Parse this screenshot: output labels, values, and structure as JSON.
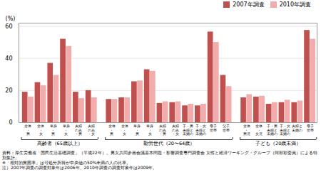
{
  "chart_data": {
    "type": "bar",
    "ylabel": "(%)",
    "ylim": [
      0,
      62
    ],
    "yticks": [
      0,
      20,
      40,
      60
    ],
    "grid": true,
    "legend": "upper right",
    "groups": [
      {
        "label": "高齢者（65歳以上）",
        "categories": [
          "全体\n・\n男",
          "全体\n・\n女",
          "単身\n・\n男",
          "単身\n・\n女",
          "夫婦\nのみ\n・男",
          "夫婦\nのみ\n・女"
        ]
      },
      {
        "label": "勤労世代（20〜64歳）",
        "categories": [
          "全体\n・\n男",
          "全体\n・\n女",
          "単身\n・\n男",
          "単身\n・\n女",
          "夫婦\nのみ\n・男",
          "夫婦\nのみ\n・女",
          "子・男\n夫婦と\n未婚の",
          "子・女\n夫婦と\n未婚の",
          "母子\n世帯",
          "父子\n世帯"
        ]
      },
      {
        "label": "子ども（20歳未満）",
        "categories": [
          "全体\n・\n男児",
          "全体\n・\n女児",
          "子・男\n夫婦と\n未婚の",
          "子・女\n夫婦と\n未婚の",
          "夫婦と\n未婚の",
          "母子\n世帯"
        ]
      }
    ],
    "series": [
      {
        "name": "2007年調査",
        "color": "#C0504D",
        "values": [
          19.0,
          25.0,
          37.0,
          52.0,
          19.0,
          20.0,
          14.5,
          15.5,
          25.5,
          33.0,
          12.0,
          12.5,
          10.5,
          10.5,
          56.5,
          29.5,
          15.5,
          16.0,
          11.5,
          12.5,
          12.5,
          57.5
        ]
      },
      {
        "name": "2010年調査",
        "color": "#F2ACAB",
        "values": [
          16.0,
          23.0,
          29.5,
          47.5,
          15.0,
          15.5,
          14.5,
          15.5,
          26.0,
          32.0,
          13.0,
          13.0,
          11.5,
          11.5,
          50.0,
          22.5,
          17.5,
          16.5,
          12.5,
          14.0,
          13.5,
          52.0
        ]
      }
    ],
    "footnote": "資料：厚生労働省「国民生活基礎調査」（平成22年）。男女共同参画会議基本問題・影響調査専門調査会 女性と経済ワーキング・グループ（阿部彩委員）による特別集計。\n※「相対的貧困率」は可処分所得が中央値の50%未満の人の比率。\n注）2007年調査の調査対象年は2006年、2010年調査の調査対象年は2009年。"
  }
}
